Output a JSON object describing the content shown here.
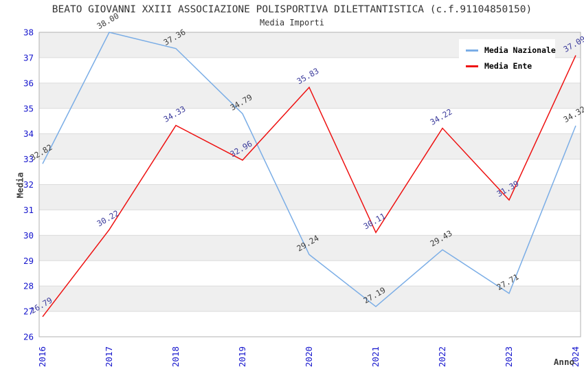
{
  "header": {
    "title": "BEATO GIOVANNI XXIII ASSOCIAZIONE POLISPORTIVA DILETTANTISTICA (c.f.91104850150)",
    "subtitle": "Media Importi"
  },
  "chart_data": {
    "type": "line",
    "x": [
      "2016",
      "2017",
      "2018",
      "2019",
      "2020",
      "2021",
      "2022",
      "2023",
      "2024"
    ],
    "xlabel": "Anno",
    "ylabel": "Media",
    "ylim": [
      26,
      38
    ],
    "ytick_step": 1,
    "grid": "horizontal gridlines with alternating gray/white one-unit bands",
    "legend_position": "top-right",
    "series": [
      {
        "name": "Media Nazionale",
        "color": "#7aade6",
        "label_color": "#3c3c3c",
        "values": [
          32.82,
          38.0,
          37.36,
          34.79,
          29.24,
          27.19,
          29.43,
          27.71,
          34.32
        ]
      },
      {
        "name": "Media Ente",
        "color": "#ee1111",
        "label_color": "#3a3a9b",
        "values": [
          26.79,
          30.22,
          34.33,
          32.96,
          35.83,
          30.11,
          34.22,
          31.39,
          37.09
        ]
      }
    ],
    "value_label_format": "0.00",
    "colors": {
      "tick_labels": "#1515cd",
      "band_fill": "#efefef",
      "gridline": "#dcdcdc",
      "plot_border": "#b0b0b0",
      "title_text": "#333333",
      "axis_title_text": "#3c3c3c"
    }
  }
}
